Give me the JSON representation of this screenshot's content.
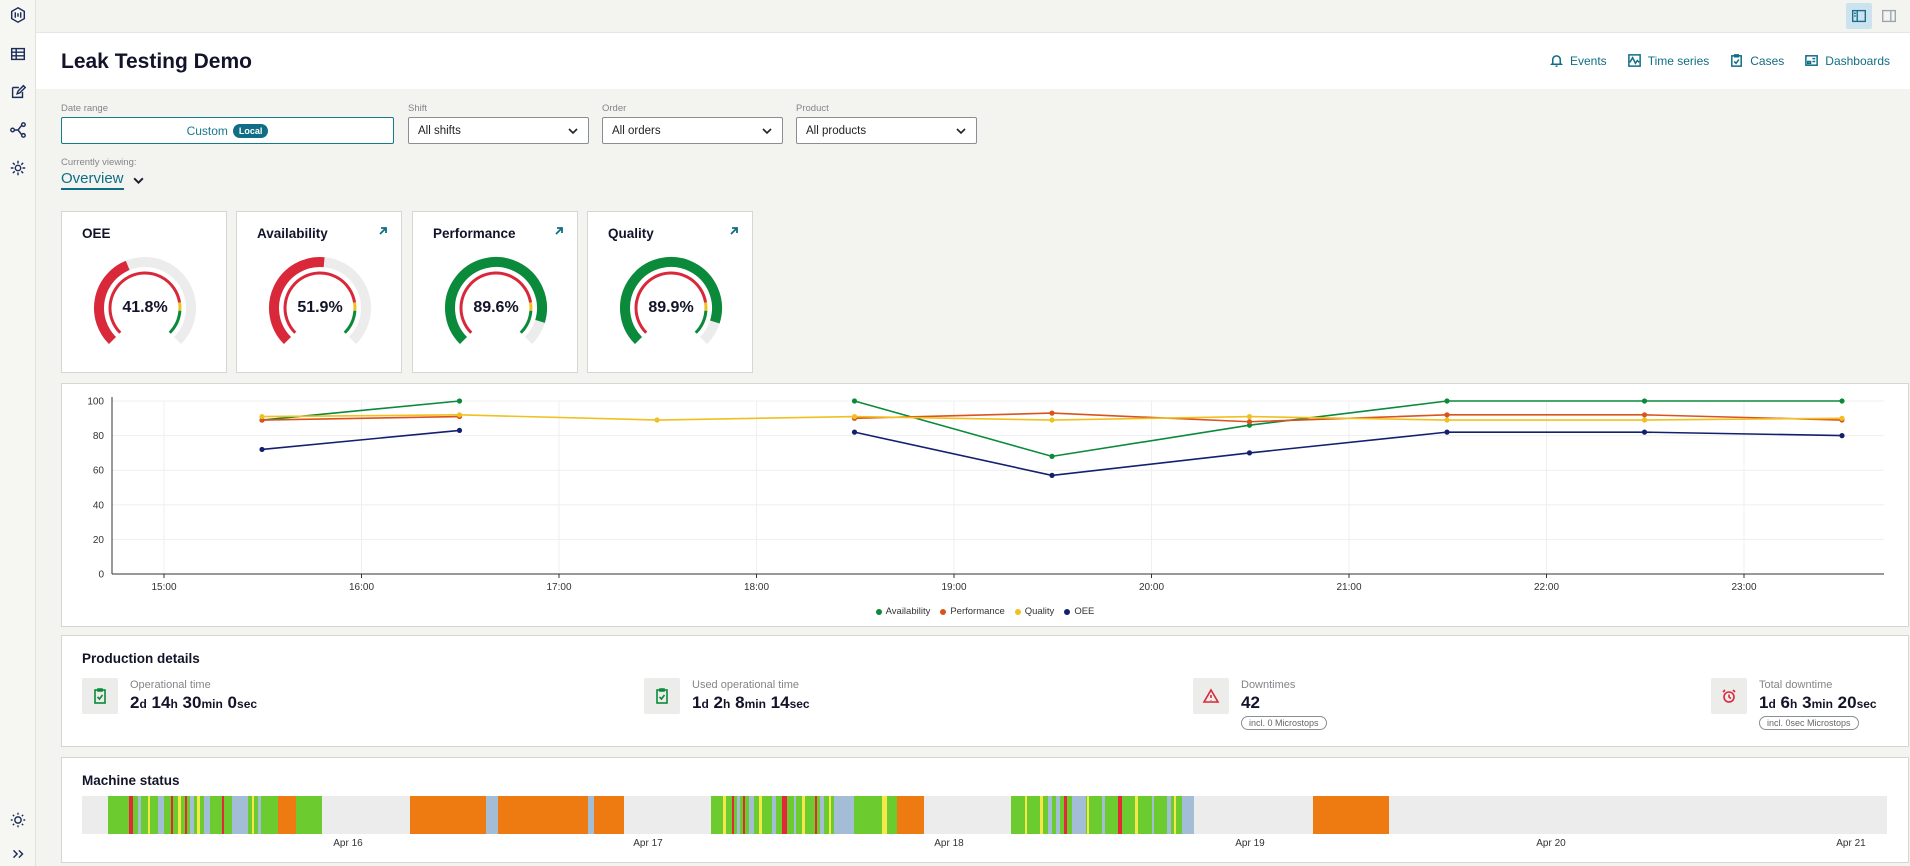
{
  "header": {
    "title": "Leak Testing Demo",
    "nav": [
      {
        "label": "Events",
        "icon": "bell-icon"
      },
      {
        "label": "Time series",
        "icon": "time-series-icon"
      },
      {
        "label": "Cases",
        "icon": "clipboard-icon"
      },
      {
        "label": "Dashboards",
        "icon": "dashboard-icon"
      }
    ]
  },
  "filters": {
    "date_range": {
      "label": "Date range",
      "value": "Custom",
      "badge": "Local"
    },
    "shift": {
      "label": "Shift",
      "value": "All shifts"
    },
    "order": {
      "label": "Order",
      "value": "All orders"
    },
    "product": {
      "label": "Product",
      "value": "All products"
    }
  },
  "viewing": {
    "label": "Currently viewing:",
    "value": "Overview"
  },
  "kpis": [
    {
      "title": "OEE",
      "value": "41.8%",
      "fraction": 0.418,
      "components": [
        0.519,
        0.896,
        0.899
      ]
    },
    {
      "title": "Availability",
      "value": "51.9%",
      "fraction": 0.519
    },
    {
      "title": "Performance",
      "value": "89.6%",
      "fraction": 0.896
    },
    {
      "title": "Quality",
      "value": "89.9%",
      "fraction": 0.899
    }
  ],
  "colors": {
    "green": "#0a8a3a",
    "red": "#d8283a",
    "yellow": "#f0c020",
    "orange": "#d9531e",
    "navy": "#13206e",
    "teal": "#0f6d86",
    "status_running": "#6ccb2f",
    "status_stopped": "#ee7b12",
    "status_idle": "#a3bdd6",
    "status_fault": "#e5273a",
    "status_warn": "#f7e84a"
  },
  "chart_data": {
    "type": "line",
    "x": [
      "15:30",
      "16:30",
      "17:30",
      "18:30",
      "19:30",
      "20:30",
      "21:30",
      "22:30",
      "23:30"
    ],
    "x_ticks": [
      "15:00",
      "16:00",
      "17:00",
      "18:00",
      "19:00",
      "20:00",
      "21:00",
      "22:00",
      "23:00"
    ],
    "ylim": [
      0,
      100
    ],
    "y_ticks": [
      "0",
      "20",
      "40",
      "60",
      "80",
      "100"
    ],
    "series": [
      {
        "name": "Availability",
        "color": "#0a8a3a",
        "values": [
          89,
          100,
          null,
          100,
          68,
          86,
          100,
          100,
          100
        ]
      },
      {
        "name": "Performance",
        "color": "#d9531e",
        "values": [
          89,
          91,
          null,
          90,
          93,
          88,
          92,
          92,
          89
        ]
      },
      {
        "name": "Quality",
        "color": "#f0c020",
        "values": [
          91,
          92,
          89,
          91,
          89,
          91,
          89,
          89,
          90
        ]
      },
      {
        "name": "OEE",
        "color": "#13206e",
        "values": [
          72,
          83,
          null,
          82,
          57,
          70,
          82,
          82,
          80
        ]
      }
    ]
  },
  "production": {
    "title": "Production details",
    "items": [
      {
        "label": "Operational time",
        "parts": [
          [
            "2",
            "d"
          ],
          [
            "14",
            "h"
          ],
          [
            "30",
            "min"
          ],
          [
            "0",
            "sec"
          ]
        ]
      },
      {
        "label": "Used operational time",
        "parts": [
          [
            "1",
            "d"
          ],
          [
            "2",
            "h"
          ],
          [
            "8",
            "min"
          ],
          [
            "14",
            "sec"
          ]
        ]
      },
      {
        "label": "Downtimes",
        "value": "42",
        "pill": "incl. 0 Microstops"
      },
      {
        "label": "Total downtime",
        "parts": [
          [
            "1",
            "d"
          ],
          [
            "6",
            "h"
          ],
          [
            "3",
            "min"
          ],
          [
            "20",
            "sec"
          ]
        ],
        "pill": "incl. 0sec Microstops"
      }
    ]
  },
  "machine_status": {
    "title": "Machine status",
    "days": [
      "Apr 16",
      "Apr 17",
      "Apr 18",
      "Apr 19",
      "Apr 20",
      "Apr 21"
    ]
  }
}
